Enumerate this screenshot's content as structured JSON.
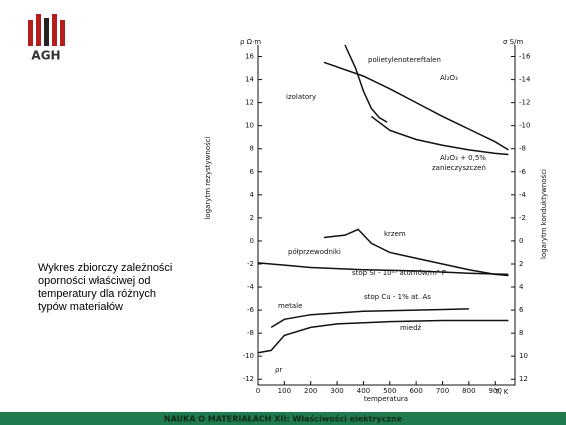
{
  "logo": "AGH",
  "description": [
    "Wykres zbiorczy zależności",
    "oporności właściwej od",
    "temperatury dla różnych",
    "typów materiałów"
  ],
  "footer": "NAUKA O MATERIAŁACH XII: Właściwości elektryczne",
  "chart_data": {
    "type": "line",
    "x_label": "temperatura",
    "y_label": "logarytm rezystywności",
    "y2_label": "logarytm konduktywności",
    "y_unit": "ρ Ω·m",
    "y2_unit": "σ S/m",
    "x_unit": "T, K",
    "xlim": [
      0,
      975
    ],
    "xticks": [
      0,
      100,
      200,
      300,
      400,
      500,
      600,
      700,
      800,
      900
    ],
    "ylim": [
      -12.5,
      17
    ],
    "yticks": [
      16,
      14,
      12,
      10,
      8,
      6,
      4,
      2,
      0,
      -2,
      -4,
      -6,
      -8,
      -10,
      -12
    ],
    "y2lim": [
      12.5,
      -17
    ],
    "y2ticks": [
      -16,
      -14,
      -12,
      -10,
      -8,
      -6,
      -4,
      -2,
      0,
      2,
      4,
      6,
      8,
      10,
      12
    ],
    "series": [
      {
        "color": "#111",
        "x": [
          250,
          400,
          500,
          600,
          700,
          800,
          900,
          950
        ],
        "values": [
          15.5,
          14.3,
          13.2,
          12,
          10.8,
          9.7,
          8.6,
          7.9
        ]
      },
      {
        "color": "#111",
        "x": [
          330,
          370,
          400,
          430,
          460,
          490
        ],
        "values": [
          17,
          15,
          13,
          11.5,
          10.7,
          10.3
        ]
      },
      {
        "color": "#111",
        "x": [
          430,
          500,
          600,
          700,
          800,
          900,
          950
        ],
        "values": [
          10.8,
          9.6,
          8.8,
          8.3,
          7.9,
          7.6,
          7.5
        ]
      },
      {
        "color": "#111",
        "x": [
          250,
          330,
          380,
          430,
          500,
          600,
          700,
          800,
          900,
          950
        ],
        "values": [
          0.3,
          0.5,
          1,
          -0.2,
          -1,
          -1.5,
          -2,
          -2.5,
          -2.9,
          -3
        ]
      },
      {
        "color": "#111",
        "x": [
          0,
          100,
          200,
          400,
          600,
          800,
          950
        ],
        "values": [
          -1.9,
          -2.1,
          -2.3,
          -2.5,
          -2.6,
          -2.8,
          -2.9
        ]
      },
      {
        "color": "#111",
        "x": [
          50,
          100,
          200,
          400,
          600,
          800
        ],
        "values": [
          -7.5,
          -6.8,
          -6.4,
          -6.1,
          -6,
          -5.9
        ]
      },
      {
        "color": "#111",
        "x": [
          0,
          50,
          100,
          200,
          300,
          500,
          700,
          950
        ],
        "values": [
          -9.7,
          -9.5,
          -8.2,
          -7.5,
          -7.2,
          -7,
          -6.9,
          -6.9
        ]
      }
    ],
    "annotations": [
      "polietylenotereftalen",
      "izolatory",
      "Al₂O₃",
      "Al₂O₃ + 0,5%",
      "zanieczyszczeń",
      "krzem",
      "półprzewodniki",
      "stop Si - 10²³ atomów/m³ P",
      "metale",
      "stop Cu - 1% at. As",
      "miedź",
      "ρr"
    ]
  }
}
